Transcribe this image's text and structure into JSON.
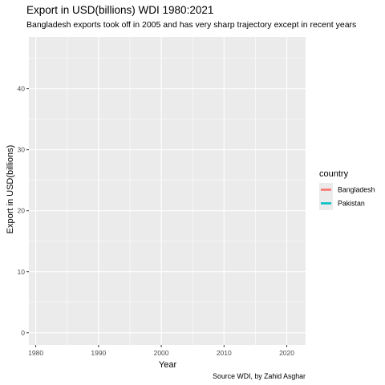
{
  "chart_data": {
    "type": "line",
    "title": "Export in USD(billions) WDI 1980:2021",
    "subtitle": "Bangladesh exports took off in 2005 and has very sharp trajectory except in recent years",
    "xlabel": "Year",
    "ylabel": "Export in USD(billions)",
    "caption": "Source WDI, by Zahid Asghar",
    "xlim": [
      1978.9,
      2023.0
    ],
    "ylim": [
      -2.0,
      48.5
    ],
    "x_ticks": [
      1980,
      1990,
      2000,
      2010,
      2020
    ],
    "y_ticks": [
      0,
      10,
      20,
      30,
      40
    ],
    "grid": true,
    "legend": {
      "title": "country",
      "placement": "right",
      "entries": [
        {
          "name": "Bangladesh",
          "color": "#F8766D"
        },
        {
          "name": "Pakistan",
          "color": "#00BFC4"
        }
      ]
    },
    "series": [
      {
        "name": "Bangladesh",
        "color": "#F8766D",
        "x": [],
        "y": []
      },
      {
        "name": "Pakistan",
        "color": "#00BFC4",
        "x": [],
        "y": []
      }
    ]
  },
  "colors": {
    "panel": "#EBEBEB",
    "grid_major": "#FFFFFF",
    "tick": "#333333"
  }
}
